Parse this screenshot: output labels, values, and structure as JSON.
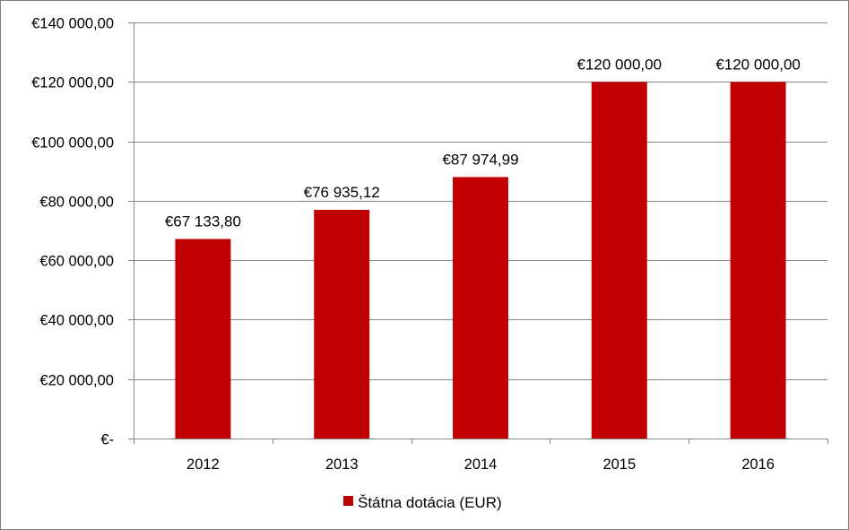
{
  "chart_data": {
    "type": "bar",
    "categories": [
      "2012",
      "2013",
      "2014",
      "2015",
      "2016"
    ],
    "series": [
      {
        "name": "Štátna dotácia (EUR)",
        "values": [
          67133.8,
          76935.12,
          87974.99,
          120000.0,
          120000.0
        ],
        "data_labels": [
          "€67 133,80",
          "€76 935,12",
          "€87 974,99",
          "€120 000,00",
          "€120 000,00"
        ],
        "color": "#c00000"
      }
    ],
    "y_ticks": [
      0,
      20000,
      40000,
      60000,
      80000,
      100000,
      120000,
      140000
    ],
    "y_tick_labels": [
      "€-",
      "€20 000,00",
      "€40 000,00",
      "€60 000,00",
      "€80 000,00",
      "€100 000,00",
      "€120 000,00",
      "€140 000,00"
    ],
    "ylim": [
      0,
      140000
    ],
    "grid": true,
    "gridline_color": "#868686",
    "legend_position": "bottom"
  }
}
